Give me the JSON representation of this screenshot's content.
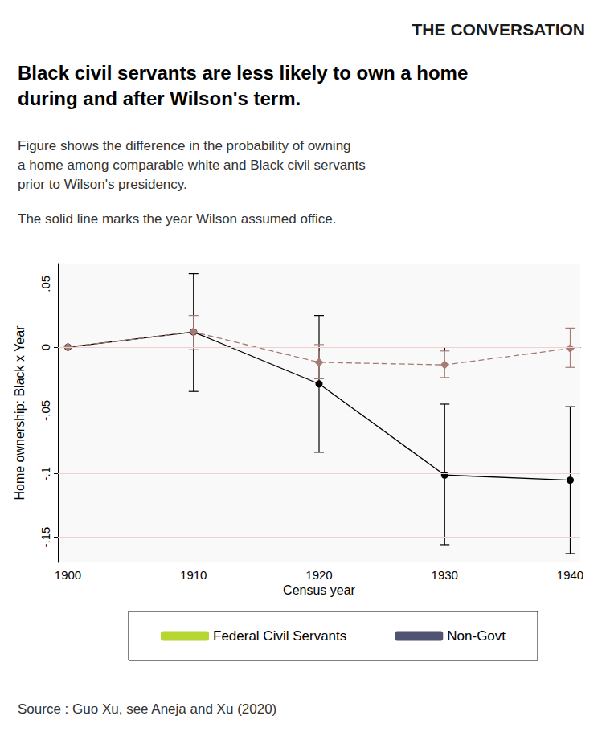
{
  "chart_data": {
    "type": "line",
    "publisher": "THE CONVERSATION",
    "title": [
      "Black civil servants are less likely to own a home",
      "during and after Wilson's term."
    ],
    "subtitle": [
      "Figure shows the difference in the probability of owning",
      "a home among comparable white and Black civil servants",
      "prior to Wilson's presidency."
    ],
    "note": "The solid line marks the year Wilson assumed office.",
    "source": "Source : Guo Xu, see Aneja and Xu (2020)",
    "x_label": "Census year",
    "y_label": "Home ownership: Black x Year",
    "x": [
      1900,
      1910,
      1920,
      1930,
      1940
    ],
    "xlim": [
      1899.2,
      1940.8
    ],
    "xticks": [
      1900,
      1910,
      1920,
      1930,
      1940
    ],
    "ylim": [
      -0.17,
      0.066
    ],
    "yticks": [
      {
        "value": 0.05,
        "label": ".05"
      },
      0,
      {
        "value": -0.05,
        "label": "-.05"
      },
      {
        "value": -0.1,
        "label": "-.1"
      },
      {
        "value": -0.15,
        "label": "-.15"
      }
    ],
    "grid": true,
    "legend": "bottom",
    "vline_x": 1913,
    "series": [
      {
        "name": "Federal Civil Servants",
        "color": "#000000",
        "marker": "circle",
        "line_style": "solid",
        "values": [
          0,
          0.012,
          -0.029,
          -0.101,
          -0.105
        ],
        "lower": [
          null,
          -0.035,
          -0.083,
          -0.156,
          -0.163
        ],
        "upper": [
          null,
          0.058,
          0.025,
          -0.045,
          -0.047
        ]
      },
      {
        "name": "Non-Govt",
        "color": "#a57b74",
        "marker": "diamond",
        "line_style": "dashed",
        "values": [
          0,
          0.012,
          -0.012,
          -0.014,
          -0.001
        ],
        "lower": [
          null,
          -0.002,
          -0.025,
          -0.024,
          -0.016
        ],
        "upper": [
          null,
          0.025,
          0.002,
          -0.003,
          0.015
        ]
      }
    ]
  }
}
